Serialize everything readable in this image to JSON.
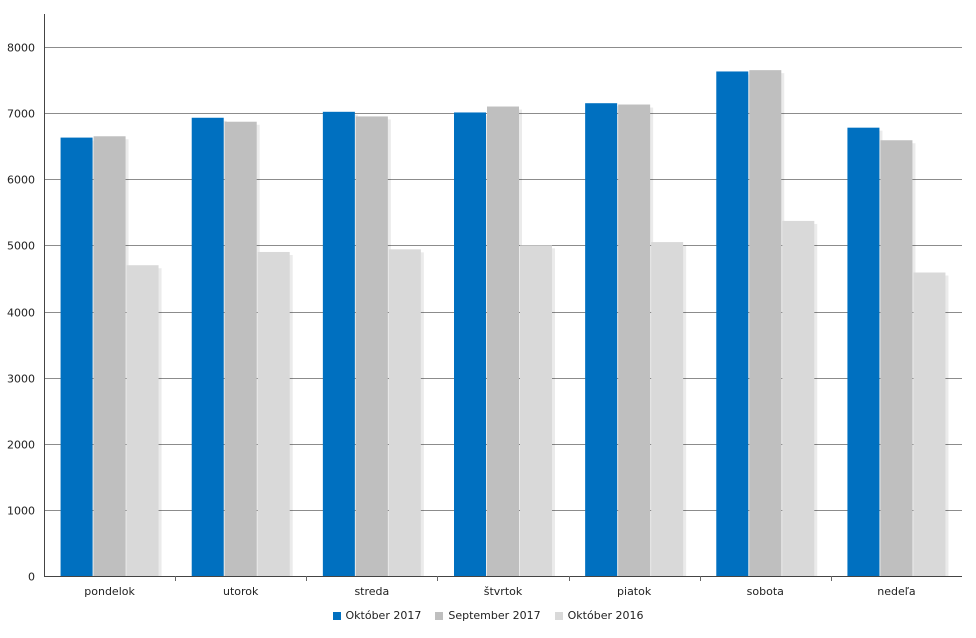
{
  "chart_data": {
    "type": "bar",
    "categories": [
      "pondelok",
      "utorok",
      "streda",
      "štvrtok",
      "piatok",
      "sobota",
      "nedeľa"
    ],
    "series": [
      {
        "name": "Október 2017",
        "color": "#0070c0",
        "values": [
          6630,
          6930,
          7020,
          7010,
          7150,
          7630,
          6780
        ]
      },
      {
        "name": "September 2017",
        "color": "#bfbfbf",
        "values": [
          6650,
          6870,
          6950,
          7100,
          7130,
          7650,
          6590
        ]
      },
      {
        "name": "Október 2016",
        "color": "#d9d9d9",
        "values": [
          4700,
          4900,
          4940,
          5000,
          5050,
          5370,
          4590
        ]
      }
    ],
    "ylim": [
      0,
      8000
    ],
    "yticks": [
      0,
      1000,
      2000,
      3000,
      4000,
      5000,
      6000,
      7000,
      8000
    ],
    "grid": true,
    "legend_position": "bottom-center"
  }
}
